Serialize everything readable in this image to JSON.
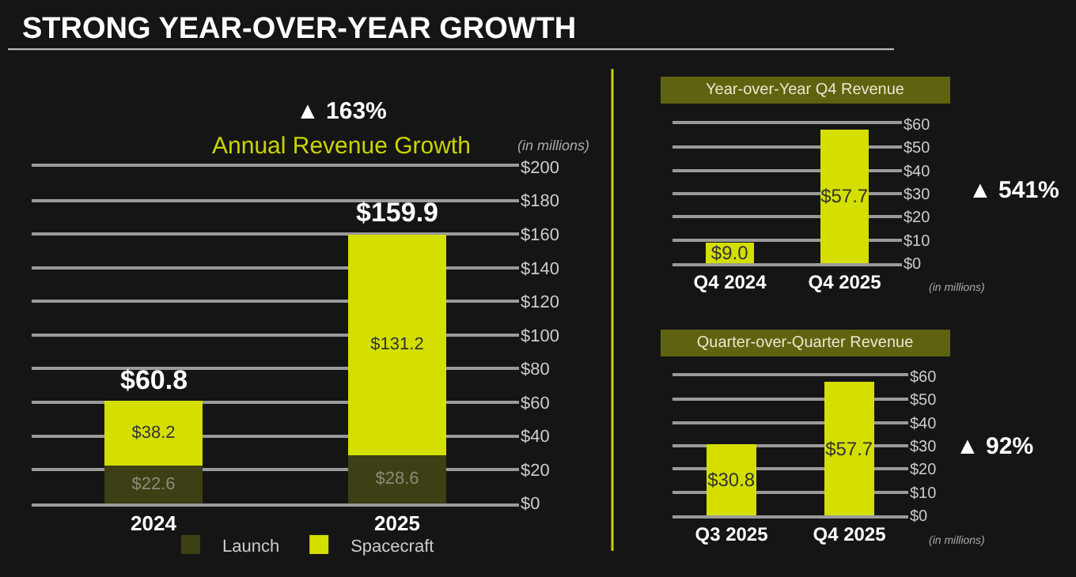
{
  "chart_data": [
    {
      "type": "bar",
      "title": "Annual Revenue Growth",
      "categories": [
        "2024",
        "2025"
      ],
      "stacked": true,
      "series": [
        {
          "name": "Launch",
          "color": "#3d4014",
          "values": [
            22.6,
            28.6
          ],
          "value_labels": [
            "$22.6",
            "$28.6"
          ]
        },
        {
          "name": "Spacecraft",
          "color": "#d4df00",
          "values": [
            38.2,
            131.2
          ],
          "value_labels": [
            "$38.2",
            "$131.2"
          ]
        }
      ],
      "totals": [
        "$60.8",
        "$159.9"
      ],
      "ylim": [
        0,
        200
      ],
      "yticks": [
        {
          "value": 0,
          "label": "$0"
        },
        {
          "value": 20,
          "label": "$20"
        },
        {
          "value": 40,
          "label": "$40"
        },
        {
          "value": 60,
          "label": "$60"
        },
        {
          "value": 80,
          "label": "$80"
        },
        {
          "value": 100,
          "label": "$100"
        },
        {
          "value": 120,
          "label": "$120"
        },
        {
          "value": 140,
          "label": "$140"
        },
        {
          "value": 160,
          "label": "$160"
        },
        {
          "value": 180,
          "label": "$180"
        },
        {
          "value": 200,
          "label": "$200"
        }
      ],
      "grid": "y",
      "legend": "bottom",
      "annotations": [
        "STRONG YEAR-OVER-YEAR GROWTH",
        "▲ 163%",
        "(in millions)"
      ]
    },
    {
      "type": "bar",
      "title": "Year-over-Year Q4 Revenue",
      "categories": [
        "Q4 2024",
        "Q4 2025"
      ],
      "series": [
        {
          "color": "#d4df00",
          "values": [
            9.0,
            57.7
          ],
          "value_labels": [
            "$9.0",
            "$57.7"
          ]
        }
      ],
      "ylim": [
        0,
        60
      ],
      "yticks": [
        {
          "value": 0,
          "label": "$0"
        },
        {
          "value": 10,
          "label": "$10"
        },
        {
          "value": 20,
          "label": "$20"
        },
        {
          "value": 30,
          "label": "$30"
        },
        {
          "value": 40,
          "label": "$40"
        },
        {
          "value": 50,
          "label": "$50"
        },
        {
          "value": 60,
          "label": "$60"
        }
      ],
      "grid": "y",
      "annotations": [
        "▲ 541%",
        "(in millions)"
      ]
    },
    {
      "type": "bar",
      "title": "Quarter-over-Quarter Revenue",
      "categories": [
        "Q3 2025",
        "Q4 2025"
      ],
      "series": [
        {
          "color": "#d4df00",
          "values": [
            30.8,
            57.7
          ],
          "value_labels": [
            "$30.8",
            "$57.7"
          ]
        }
      ],
      "ylim": [
        0,
        60
      ],
      "yticks": [
        {
          "value": 0,
          "label": "$0"
        },
        {
          "value": 10,
          "label": "$10"
        },
        {
          "value": 20,
          "label": "$20"
        },
        {
          "value": 30,
          "label": "$30"
        },
        {
          "value": 40,
          "label": "$40"
        },
        {
          "value": 50,
          "label": "$50"
        },
        {
          "value": 60,
          "label": "$60"
        }
      ],
      "grid": "y",
      "annotations": [
        "▲ 92%",
        "(in millions)"
      ]
    }
  ]
}
